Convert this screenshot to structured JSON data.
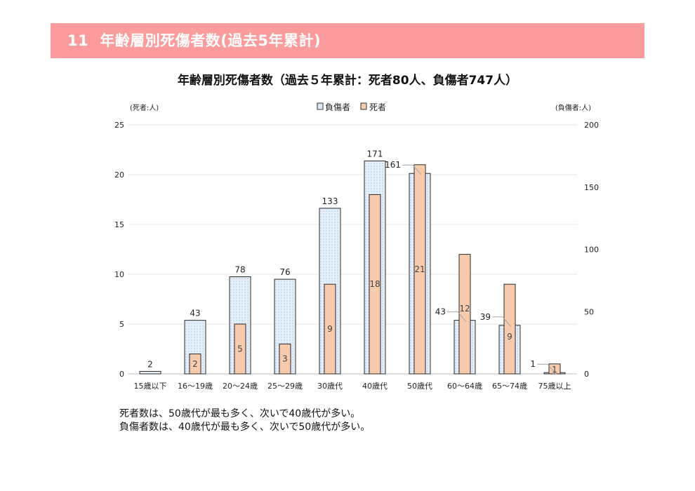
{
  "header": {
    "number": "11",
    "title": "年齢層別死傷者数(過去5年累計)"
  },
  "chart_data": {
    "type": "bar",
    "title": "年齢層別死傷者数（過去５年累計：死者80人、負傷者747人）",
    "left_axis_unit": "(死者:人)",
    "right_axis_unit": "(負傷者:人)",
    "left_ylim": [
      0,
      25
    ],
    "left_ticks": [
      0,
      5,
      10,
      15,
      20,
      25
    ],
    "right_ylim": [
      0,
      200
    ],
    "right_ticks": [
      0,
      50,
      100,
      150,
      200
    ],
    "categories": [
      "15歳以下",
      "16～19歳",
      "20～24歳",
      "25～29歳",
      "30歳代",
      "40歳代",
      "50歳代",
      "60～64歳",
      "65～74歳",
      "75歳以上"
    ],
    "series": [
      {
        "name": "負傷者",
        "axis": "right",
        "color": "#dbeaf7",
        "values": [
          2,
          43,
          78,
          76,
          133,
          171,
          161,
          43,
          39,
          1
        ]
      },
      {
        "name": "死者",
        "axis": "left",
        "color": "#f8cbad",
        "values": [
          0,
          2,
          5,
          3,
          9,
          18,
          21,
          12,
          9,
          1
        ]
      }
    ],
    "legend_position": "top-center",
    "grid": true
  },
  "notes": [
    "死者数は、50歳代が最も多く、次いで40歳代が多い。",
    "負傷者数は、40歳代が最も多く、次いで50歳代が多い。"
  ]
}
